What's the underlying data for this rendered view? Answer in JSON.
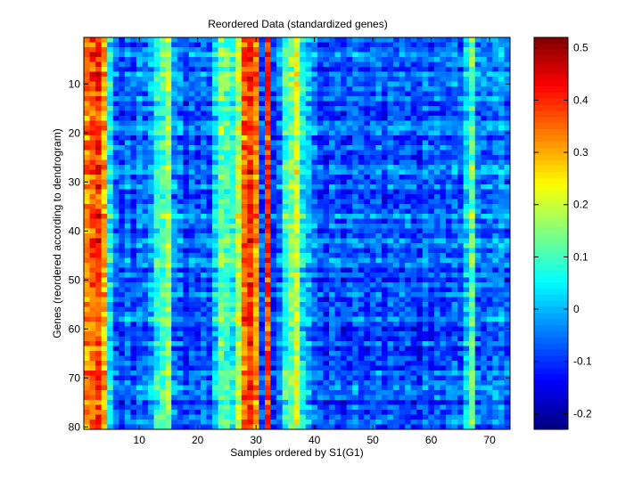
{
  "chart_data": {
    "type": "heatmap",
    "title": "Reordered Data (standardized genes)",
    "xlabel": "Samples ordered by S1(G1)",
    "ylabel": "Genes (reordered according to dendrogram)",
    "n_cols": 73,
    "n_rows": 80,
    "xlim": [
      0.5,
      73.5
    ],
    "ylim": [
      0.5,
      80.5
    ],
    "x_ticks": [
      10,
      20,
      30,
      40,
      50,
      60,
      70
    ],
    "y_ticks": [
      10,
      20,
      30,
      40,
      50,
      60,
      70,
      80
    ],
    "colormap": "jet",
    "clim": [
      -0.23,
      0.52
    ],
    "colorbar_ticks": [
      -0.2,
      -0.1,
      0,
      0.1,
      0.2,
      0.3,
      0.4,
      0.5
    ],
    "colorbar_tick_labels": [
      "-0.2",
      "-0.1",
      "0",
      "0.1",
      "0.2",
      "0.3",
      "0.4",
      "0.5"
    ],
    "column_profile": [
      0.33,
      0.36,
      0.39,
      0.3,
      0.05,
      -0.06,
      -0.09,
      -0.04,
      -0.09,
      -0.03,
      -0.06,
      -0.02,
      0.08,
      0.1,
      0.16,
      -0.03,
      -0.05,
      -0.1,
      -0.06,
      -0.08,
      -0.05,
      -0.08,
      0.02,
      0.13,
      0.1,
      0.07,
      0.18,
      0.35,
      0.4,
      0.32,
      -0.09,
      0.39,
      -0.1,
      -0.05,
      0.09,
      0.14,
      0.2,
      0.05,
      0.0,
      -0.05,
      -0.08,
      -0.1,
      -0.06,
      -0.07,
      -0.1,
      -0.08,
      -0.05,
      -0.07,
      -0.09,
      -0.07,
      -0.06,
      -0.1,
      -0.06,
      -0.08,
      -0.07,
      -0.07,
      -0.09,
      -0.1,
      -0.05,
      -0.08,
      -0.06,
      -0.07,
      -0.08,
      -0.05,
      -0.07,
      0.02,
      0.12,
      -0.05,
      -0.06,
      -0.05,
      -0.04,
      -0.03,
      -0.06
    ],
    "row_noise": 0.05,
    "cell_noise": 0.06
  }
}
